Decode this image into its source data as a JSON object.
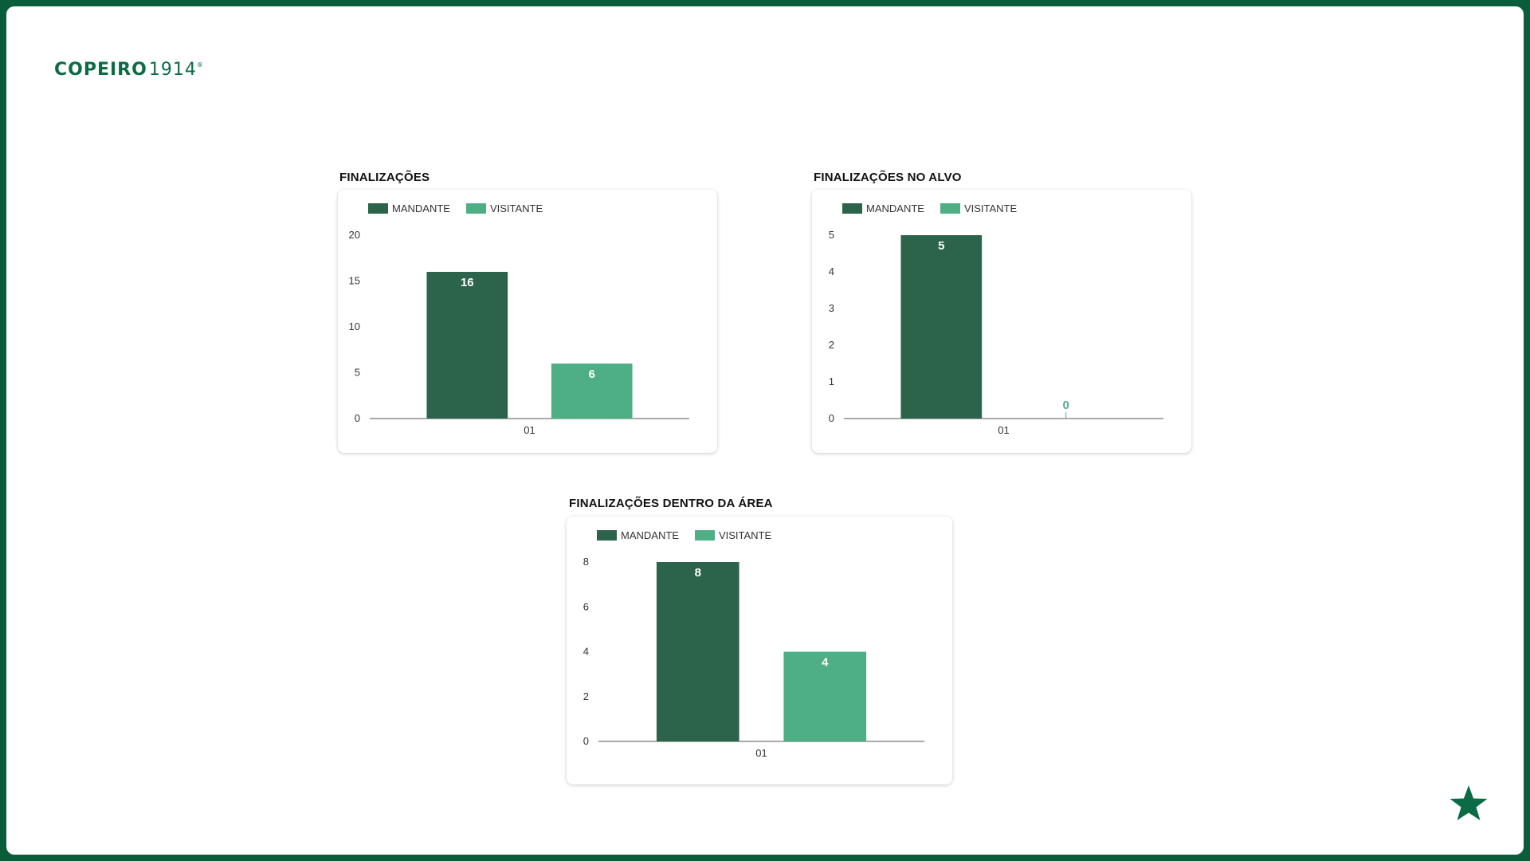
{
  "brand": {
    "name_bold": "COPEIRO",
    "name_light": "1914",
    "mark": "®"
  },
  "colors": {
    "mandante": "#2c634b",
    "visitante": "#4faf84",
    "brand": "#0b6b45",
    "frame": "#0b5c3b"
  },
  "icons": {
    "corner": "star-icon"
  },
  "legend": {
    "mandante": "MANDANTE",
    "visitante": "VISITANTE"
  },
  "chart_data": [
    {
      "type": "bar",
      "title": "FINALIZAÇÕES",
      "categories": [
        "01"
      ],
      "series": [
        {
          "name": "MANDANTE",
          "values": [
            16
          ]
        },
        {
          "name": "VISITANTE",
          "values": [
            6
          ]
        }
      ],
      "yticks": [
        0,
        5,
        10,
        15,
        20
      ],
      "ylim": [
        0,
        20
      ],
      "legend_position": "top-left",
      "grid": false
    },
    {
      "type": "bar",
      "title": "FINALIZAÇÕES NO ALVO",
      "categories": [
        "01"
      ],
      "series": [
        {
          "name": "MANDANTE",
          "values": [
            5
          ]
        },
        {
          "name": "VISITANTE",
          "values": [
            0
          ]
        }
      ],
      "yticks": [
        0,
        1,
        2,
        3,
        4,
        5
      ],
      "ylim": [
        0,
        5
      ],
      "legend_position": "top-left",
      "grid": false
    },
    {
      "type": "bar",
      "title": "FINALIZAÇÕES DENTRO DA ÁREA",
      "categories": [
        "01"
      ],
      "series": [
        {
          "name": "MANDANTE",
          "values": [
            8
          ]
        },
        {
          "name": "VISITANTE",
          "values": [
            4
          ]
        }
      ],
      "yticks": [
        0,
        2,
        4,
        6,
        8
      ],
      "ylim": [
        0,
        8
      ],
      "legend_position": "top-left",
      "grid": false
    }
  ]
}
